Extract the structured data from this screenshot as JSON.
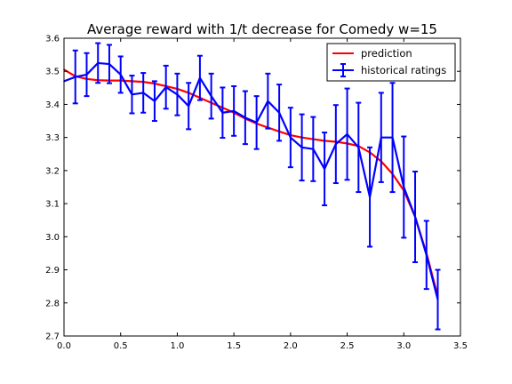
{
  "chart_data": {
    "type": "line",
    "title": "Average reward with 1/t decrease for Comedy w=15",
    "xlabel": "",
    "ylabel": "",
    "xlim": [
      0.0,
      3.5
    ],
    "ylim": [
      2.7,
      3.6
    ],
    "xticks": [
      "0.0",
      "0.5",
      "1.0",
      "1.5",
      "2.0",
      "2.5",
      "3.0",
      "3.5"
    ],
    "yticks": [
      "2.7",
      "2.8",
      "2.9",
      "3.0",
      "3.1",
      "3.2",
      "3.3",
      "3.4",
      "3.5",
      "3.6"
    ],
    "grid": false,
    "legend_position": "top-right",
    "series": [
      {
        "name": "prediction",
        "kind": "line",
        "color": "#ff0000",
        "x": [
          0.0,
          0.1,
          0.2,
          0.3,
          0.4,
          0.5,
          0.6,
          0.7,
          0.8,
          0.9,
          1.0,
          1.1,
          1.2,
          1.3,
          1.4,
          1.5,
          1.6,
          1.7,
          1.8,
          1.9,
          2.0,
          2.1,
          2.2,
          2.3,
          2.4,
          2.5,
          2.6,
          2.7,
          2.8,
          2.9,
          3.0,
          3.1,
          3.2,
          3.3
        ],
        "y": [
          3.505,
          3.485,
          3.477,
          3.473,
          3.472,
          3.472,
          3.47,
          3.468,
          3.463,
          3.455,
          3.447,
          3.435,
          3.42,
          3.405,
          3.39,
          3.375,
          3.357,
          3.342,
          3.33,
          3.318,
          3.307,
          3.3,
          3.295,
          3.29,
          3.287,
          3.282,
          3.274,
          3.255,
          3.228,
          3.19,
          3.14,
          3.06,
          2.95,
          2.82
        ]
      },
      {
        "name": "historical ratings",
        "kind": "errorbar",
        "color": "#0000ff",
        "x": [
          0.0,
          0.1,
          0.2,
          0.3,
          0.4,
          0.5,
          0.6,
          0.7,
          0.8,
          0.9,
          1.0,
          1.1,
          1.2,
          1.3,
          1.4,
          1.5,
          1.6,
          1.7,
          1.8,
          1.9,
          2.0,
          2.1,
          2.2,
          2.3,
          2.4,
          2.5,
          2.6,
          2.7,
          2.8,
          2.9,
          3.0,
          3.1,
          3.2,
          3.3
        ],
        "y": [
          3.47,
          3.483,
          3.49,
          3.525,
          3.522,
          3.49,
          3.43,
          3.435,
          3.41,
          3.452,
          3.43,
          3.395,
          3.48,
          3.425,
          3.375,
          3.38,
          3.36,
          3.345,
          3.41,
          3.375,
          3.3,
          3.27,
          3.265,
          3.205,
          3.28,
          3.31,
          3.27,
          3.12,
          3.3,
          3.3,
          3.15,
          3.06,
          2.945,
          2.81
        ],
        "yerr": [
          0.0,
          0.08,
          0.065,
          0.06,
          0.058,
          0.055,
          0.057,
          0.06,
          0.06,
          0.065,
          0.063,
          0.07,
          0.067,
          0.068,
          0.076,
          0.075,
          0.08,
          0.08,
          0.083,
          0.085,
          0.09,
          0.1,
          0.097,
          0.11,
          0.118,
          0.138,
          0.135,
          0.15,
          0.135,
          0.165,
          0.153,
          0.137,
          0.103,
          0.09
        ]
      }
    ]
  }
}
